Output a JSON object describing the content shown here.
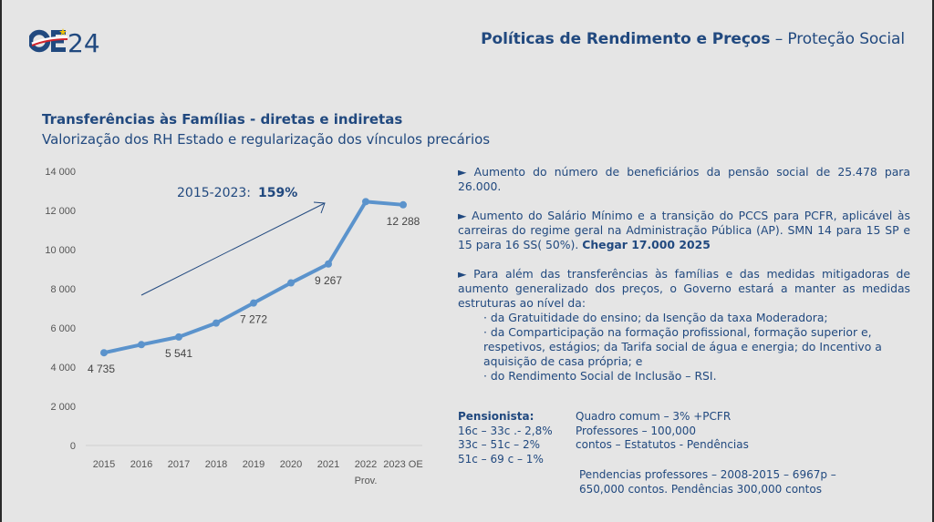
{
  "header": {
    "logo_text": "OE24",
    "title_bold": "Políticas de Rendimento e Preços",
    "title_rest": " – Proteção Social"
  },
  "section": {
    "title": "Transferências às Famílias - diretas e indiretas",
    "subtitle": "Valorização dos RH Estado e regularização dos vínculos precários"
  },
  "colors": {
    "brand_blue": "#21497f",
    "series_line": "#5b93cc",
    "background": "#e5e5e5",
    "logo_red": "#d2232a",
    "logo_star": "#f2c200"
  },
  "chart_data": {
    "type": "line",
    "title": "",
    "xlabel": "",
    "ylabel": "",
    "categories": [
      "2015",
      "2016",
      "2017",
      "2018",
      "2019",
      "2020",
      "2021",
      "2022 Prov.",
      "2023 OE"
    ],
    "category_lines": [
      [
        "2015"
      ],
      [
        "2016"
      ],
      [
        "2017"
      ],
      [
        "2018"
      ],
      [
        "2019"
      ],
      [
        "2020"
      ],
      [
        "2021"
      ],
      [
        "2022",
        "Prov."
      ],
      [
        "2023 OE"
      ]
    ],
    "series": [
      {
        "name": "Transferências às Famílias",
        "values": [
          4735,
          5150,
          5541,
          6250,
          7272,
          8300,
          9267,
          12450,
          12288
        ]
      }
    ],
    "data_labels": [
      {
        "index": 0,
        "text": "4 735",
        "position": "below"
      },
      {
        "index": 2,
        "text": "5 541",
        "position": "below"
      },
      {
        "index": 4,
        "text": "7 272",
        "position": "below"
      },
      {
        "index": 6,
        "text": "9 267",
        "position": "below"
      },
      {
        "index": 8,
        "text": "12 288",
        "position": "below"
      }
    ],
    "ylim": [
      0,
      14000
    ],
    "yticks": [
      0,
      2000,
      4000,
      6000,
      8000,
      10000,
      12000,
      14000
    ],
    "ytick_labels": [
      "0",
      "2 000",
      "4 000",
      "6 000",
      "8 000",
      "10 000",
      "12 000",
      "14 000"
    ],
    "grid": false,
    "legend": "none",
    "annotation": {
      "text_prefix": "2015-2023:",
      "text_bold": "159%",
      "arrow": "trend arrow pointing up-right from 2016 to 2021"
    }
  },
  "bullets": [
    {
      "marker": "►",
      "text": "Aumento do número de beneficiários da pensão social de 25.478 para 26.000."
    },
    {
      "marker": "►",
      "text": "Aumento do Salário Mínimo e a transição do PCCS para PCFR, aplicável às carreiras do regime geral na Administração Pública (AP). SMN 14 para 15 SP e 15 para 16 SS( 50%). ",
      "bold": "Chegar 17.000 2025"
    },
    {
      "marker": "►",
      "text": "Para além das transferências às famílias e das medidas mitigadoras de aumento generalizado dos preços, o Governo estará a manter as medidas estruturas ao nível da:",
      "sub_items": [
        "· da Gratuitidade do ensino; da Isenção da taxa Moderadora;",
        "· da Comparticipação na formação profissional, formação superior e, respetivos, estágios; da Tarifa social de água e energia; do Incentivo a aquisição de casa própria; e",
        "· do Rendimento Social de Inclusão – RSI."
      ]
    }
  ],
  "pensionista": {
    "heading": "Pensionista:",
    "rows": [
      "16c – 33c .- 2,8%",
      "33c – 51c – 2%",
      "51c – 69 c – 1%"
    ]
  },
  "quadro": {
    "lines": [
      "Quadro comum – 3% +PCFR",
      "Professores – 100,000",
      "contos – Estatutos - Pendências"
    ]
  },
  "pendencias": {
    "lines": [
      "Pendencias professores – 2008-2015 – 6967p –",
      "650,000 contos. Pendências 300,000 contos"
    ]
  }
}
